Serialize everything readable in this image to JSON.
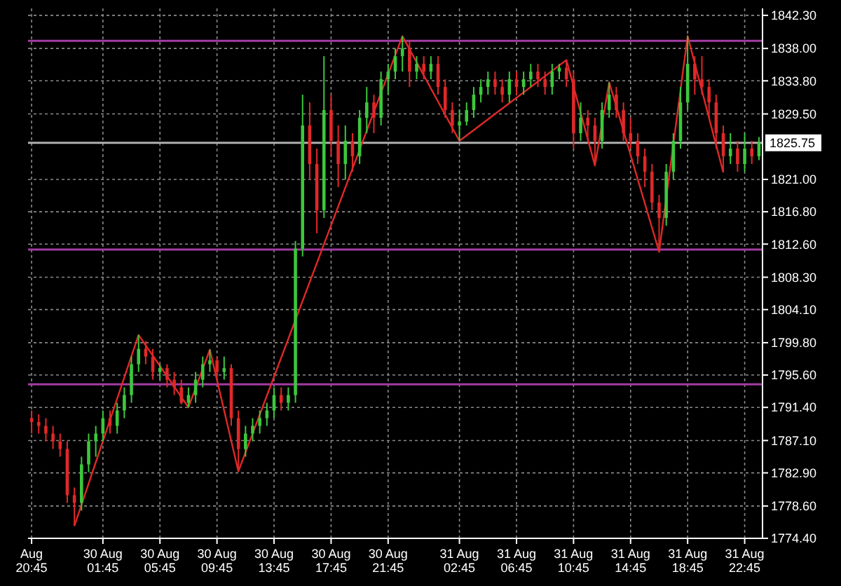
{
  "chart_data": {
    "type": "candlestick",
    "categories": [
      "Aug 20:45",
      null,
      null,
      null,
      null,
      null,
      null,
      null,
      null,
      null,
      "30 Aug 01:45",
      null,
      null,
      null,
      null,
      null,
      null,
      null,
      "30 Aug 05:45",
      null,
      null,
      null,
      null,
      null,
      null,
      null,
      "30 Aug 09:45",
      null,
      null,
      null,
      null,
      null,
      null,
      null,
      "30 Aug 13:45",
      null,
      null,
      null,
      null,
      null,
      null,
      null,
      "30 Aug 17:45",
      null,
      null,
      null,
      null,
      null,
      null,
      null,
      "30 Aug 21:45",
      null,
      null,
      null,
      null,
      null,
      null,
      null,
      null,
      null,
      "31 Aug 02:45",
      null,
      null,
      null,
      null,
      null,
      null,
      null,
      "31 Aug 06:45",
      null,
      null,
      null,
      null,
      null,
      null,
      null,
      "31 Aug 10:45",
      null,
      null,
      null,
      null,
      null,
      null,
      null,
      "31 Aug 14:45",
      null,
      null,
      null,
      null,
      null,
      null,
      null,
      "31 Aug 18:45",
      null,
      null,
      null,
      null,
      null,
      null,
      null,
      "31 Aug 22:45",
      null,
      null
    ],
    "ohlc": [
      [
        1790,
        1791,
        1788,
        1789.5
      ],
      [
        1789.5,
        1790.5,
        1788,
        1789
      ],
      [
        1789,
        1790,
        1787,
        1788
      ],
      [
        1788,
        1789,
        1786,
        1787
      ],
      [
        1787,
        1788,
        1785,
        1786
      ],
      [
        1786,
        1787,
        1779,
        1780
      ],
      [
        1780,
        1781,
        1776,
        1779
      ],
      [
        1779,
        1785,
        1778,
        1784
      ],
      [
        1784,
        1788,
        1783,
        1787
      ],
      [
        1787,
        1789,
        1785,
        1788
      ],
      [
        1788,
        1791,
        1787,
        1790
      ],
      [
        1790,
        1791,
        1788,
        1789
      ],
      [
        1789,
        1792,
        1788,
        1791
      ],
      [
        1791,
        1794,
        1790,
        1793
      ],
      [
        1793,
        1798,
        1792,
        1797
      ],
      [
        1797,
        1800.8,
        1796,
        1799
      ],
      [
        1799,
        1800,
        1797,
        1798
      ],
      [
        1798,
        1799,
        1795,
        1796
      ],
      [
        1796,
        1797,
        1795,
        1796.5
      ],
      [
        1796.5,
        1797,
        1794,
        1795
      ],
      [
        1795,
        1796,
        1793,
        1794
      ],
      [
        1794,
        1795,
        1791.8,
        1792
      ],
      [
        1792,
        1794,
        1791.4,
        1793
      ],
      [
        1793,
        1796,
        1792,
        1795
      ],
      [
        1795,
        1798,
        1794,
        1797
      ],
      [
        1797,
        1798.9,
        1796,
        1797.5
      ],
      [
        1797.5,
        1798,
        1795,
        1796
      ],
      [
        1796,
        1798,
        1795,
        1796.5
      ],
      [
        1796.5,
        1797,
        1789,
        1790
      ],
      [
        1790,
        1791,
        1783.1,
        1786
      ],
      [
        1786,
        1789,
        1785,
        1788
      ],
      [
        1788,
        1790,
        1787,
        1789
      ],
      [
        1789,
        1791,
        1788,
        1790
      ],
      [
        1790,
        1792,
        1789,
        1791
      ],
      [
        1791,
        1794,
        1790,
        1793
      ],
      [
        1793,
        1794,
        1791,
        1792
      ],
      [
        1792,
        1794,
        1791,
        1793
      ],
      [
        1793,
        1813,
        1792,
        1812
      ],
      [
        1812,
        1832,
        1811,
        1828
      ],
      [
        1828,
        1831,
        1821,
        1823
      ],
      [
        1823,
        1825,
        1814,
        1817
      ],
      [
        1817,
        1837,
        1816,
        1830
      ],
      [
        1830,
        1832,
        1824,
        1826
      ],
      [
        1826,
        1828,
        1820,
        1823
      ],
      [
        1823,
        1828,
        1821,
        1826
      ],
      [
        1826,
        1827,
        1822,
        1824
      ],
      [
        1824,
        1830,
        1823,
        1829
      ],
      [
        1829,
        1833,
        1827,
        1831
      ],
      [
        1831,
        1832,
        1827,
        1829
      ],
      [
        1829,
        1835,
        1828,
        1834
      ],
      [
        1834,
        1836,
        1832,
        1835
      ],
      [
        1835,
        1838,
        1834,
        1837
      ],
      [
        1837,
        1839.6,
        1835,
        1838
      ],
      [
        1838,
        1839,
        1833,
        1835
      ],
      [
        1835,
        1837,
        1834,
        1836
      ],
      [
        1836,
        1837,
        1834,
        1835
      ],
      [
        1835,
        1837,
        1834,
        1836
      ],
      [
        1836,
        1837,
        1832,
        1833
      ],
      [
        1833,
        1834,
        1829,
        1830
      ],
      [
        1830,
        1831,
        1827,
        1828
      ],
      [
        1828,
        1830,
        1826,
        1828.5
      ],
      [
        1828.5,
        1831,
        1828,
        1830
      ],
      [
        1830,
        1833,
        1829,
        1832
      ],
      [
        1832,
        1834,
        1831,
        1833
      ],
      [
        1833,
        1835,
        1832,
        1834
      ],
      [
        1834,
        1835,
        1832,
        1833
      ],
      [
        1833,
        1834,
        1831,
        1832
      ],
      [
        1832,
        1835,
        1831,
        1834
      ],
      [
        1834,
        1835,
        1832,
        1833
      ],
      [
        1833,
        1835,
        1832,
        1834
      ],
      [
        1834,
        1836,
        1833,
        1835
      ],
      [
        1835,
        1836,
        1833,
        1834
      ],
      [
        1834,
        1835,
        1832,
        1833
      ],
      [
        1833,
        1836,
        1832,
        1835
      ],
      [
        1835,
        1836,
        1834,
        1835.5
      ],
      [
        1835.5,
        1836.5,
        1833,
        1834
      ],
      [
        1834,
        1835,
        1825,
        1827
      ],
      [
        1827,
        1831,
        1826,
        1829
      ],
      [
        1829,
        1830,
        1826,
        1828
      ],
      [
        1828,
        1829,
        1822.8,
        1826
      ],
      [
        1826,
        1831,
        1825,
        1830
      ],
      [
        1830,
        1833.6,
        1829,
        1832
      ],
      [
        1832,
        1833,
        1829,
        1830
      ],
      [
        1830,
        1831,
        1826,
        1827
      ],
      [
        1827,
        1829,
        1825,
        1826
      ],
      [
        1826,
        1827,
        1823,
        1824
      ],
      [
        1824,
        1825,
        1820,
        1822
      ],
      [
        1822,
        1823,
        1817,
        1818
      ],
      [
        1818,
        1819,
        1811.6,
        1816
      ],
      [
        1816,
        1823,
        1815,
        1822
      ],
      [
        1822,
        1827,
        1821,
        1826
      ],
      [
        1826,
        1833,
        1825,
        1831
      ],
      [
        1831,
        1839.6,
        1830,
        1836
      ],
      [
        1836,
        1837,
        1832,
        1834
      ],
      [
        1834,
        1837,
        1832,
        1833
      ],
      [
        1833,
        1834,
        1829,
        1831
      ],
      [
        1831,
        1832,
        1825,
        1827
      ],
      [
        1827,
        1828,
        1821.9,
        1824
      ],
      [
        1824,
        1827,
        1823,
        1825
      ],
      [
        1825,
        1826,
        1822,
        1823
      ],
      [
        1823,
        1827,
        1822,
        1825
      ],
      [
        1825,
        1826,
        1823,
        1824
      ],
      [
        1824,
        1826.5,
        1823.5,
        1825.75
      ]
    ],
    "colors": [
      "#e02828",
      "#e02828",
      "#e02828",
      "#e02828",
      "#e02828",
      "#e02828",
      "#e02828",
      "#3cc83c",
      "#3cc83c",
      "#3cc83c",
      "#3cc83c",
      "#e02828",
      "#3cc83c",
      "#3cc83c",
      "#3cc83c",
      "#3cc83c",
      "#e02828",
      "#e02828",
      "#3cc83c",
      "#e02828",
      "#e02828",
      "#e02828",
      "#3cc83c",
      "#3cc83c",
      "#3cc83c",
      "#3cc83c",
      "#e02828",
      "#3cc83c",
      "#e02828",
      "#e02828",
      "#3cc83c",
      "#3cc83c",
      "#3cc83c",
      "#3cc83c",
      "#3cc83c",
      "#e02828",
      "#3cc83c",
      "#3cc83c",
      "#3cc83c",
      "#e02828",
      "#e02828",
      "#3cc83c",
      "#e02828",
      "#e02828",
      "#3cc83c",
      "#e02828",
      "#3cc83c",
      "#3cc83c",
      "#e02828",
      "#3cc83c",
      "#3cc83c",
      "#3cc83c",
      "#3cc83c",
      "#e02828",
      "#3cc83c",
      "#e02828",
      "#3cc83c",
      "#e02828",
      "#e02828",
      "#e02828",
      "#3cc83c",
      "#3cc83c",
      "#3cc83c",
      "#3cc83c",
      "#3cc83c",
      "#e02828",
      "#e02828",
      "#3cc83c",
      "#e02828",
      "#3cc83c",
      "#3cc83c",
      "#e02828",
      "#e02828",
      "#3cc83c",
      "#3cc83c",
      "#e02828",
      "#e02828",
      "#3cc83c",
      "#e02828",
      "#e02828",
      "#3cc83c",
      "#3cc83c",
      "#e02828",
      "#e02828",
      "#e02828",
      "#e02828",
      "#e02828",
      "#e02828",
      "#e02828",
      "#3cc83c",
      "#3cc83c",
      "#3cc83c",
      "#3cc83c",
      "#e02828",
      "#e02828",
      "#e02828",
      "#e02828",
      "#e02828",
      "#3cc83c",
      "#e02828",
      "#3cc83c",
      "#e02828",
      "#3cc83c"
    ],
    "series": [
      {
        "type": "line",
        "color": "#e02828",
        "values": [
          null,
          null,
          null,
          null,
          null,
          null,
          1776,
          null,
          null,
          null,
          null,
          null,
          null,
          null,
          null,
          1800.8,
          null,
          null,
          null,
          null,
          null,
          null,
          1791.4,
          null,
          null,
          1798.9,
          null,
          null,
          null,
          1783.1,
          null,
          null,
          null,
          null,
          null,
          null,
          null,
          null,
          null,
          null,
          null,
          null,
          null,
          null,
          null,
          null,
          null,
          null,
          null,
          null,
          null,
          null,
          1839.6,
          null,
          null,
          null,
          null,
          null,
          null,
          null,
          1826,
          null,
          null,
          null,
          null,
          null,
          null,
          null,
          null,
          null,
          null,
          null,
          null,
          null,
          null,
          1836.5,
          null,
          null,
          null,
          1822.8,
          null,
          1833.6,
          null,
          null,
          null,
          null,
          null,
          null,
          1811.6,
          null,
          null,
          null,
          1839.6,
          null,
          null,
          null,
          null,
          1821.9,
          null,
          null,
          null,
          null,
          null
        ]
      }
    ],
    "ylim": [
      1774.4,
      1843.2
    ],
    "yticks": [
      {
        "value": 1842.3,
        "label": "1842.30"
      },
      {
        "value": 1838,
        "label": "1838.00"
      },
      {
        "value": 1833.8,
        "label": "1833.80"
      },
      {
        "value": 1829.5,
        "label": "1829.50"
      },
      {
        "value": 1821,
        "label": "1821.00"
      },
      {
        "value": 1816.8,
        "label": "1816.80"
      },
      {
        "value": 1812.6,
        "label": "1812.60"
      },
      {
        "value": 1808.3,
        "label": "1808.30"
      },
      {
        "value": 1804.1,
        "label": "1804.10"
      },
      {
        "value": 1799.8,
        "label": "1799.80"
      },
      {
        "value": 1795.6,
        "label": "1795.60"
      },
      {
        "value": 1791.4,
        "label": "1791.40"
      },
      {
        "value": 1787.1,
        "label": "1787.10"
      },
      {
        "value": 1782.9,
        "label": "1782.90"
      },
      {
        "value": 1778.6,
        "label": "1778.60"
      },
      {
        "value": 1774.4,
        "label": "1774.40"
      }
    ],
    "grid": true,
    "ref_lines": [
      {
        "axis": "y",
        "value": 1839,
        "color": "#a23ca2"
      },
      {
        "axis": "y",
        "value": 1811.9,
        "color": "#a23ca2"
      },
      {
        "axis": "y",
        "value": 1794.4,
        "color": "#a23ca2"
      },
      {
        "axis": "y",
        "value": 1825.75,
        "label": "1825.75",
        "color": "#b0b0b0"
      }
    ]
  }
}
